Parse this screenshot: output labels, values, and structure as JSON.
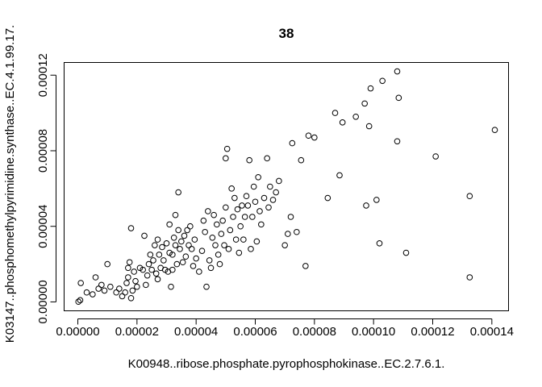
{
  "chart_data": {
    "type": "scatter",
    "title": "38",
    "xlabel": "K00948..ribose.phosphate.pyrophosphokinase..EC.2.7.6.1.",
    "ylabel": "K03147..phosphomethylpyrimidine.synthase..EC.4.1.99.17.",
    "xlim": [
      -4.5e-06,
      0.0001455
    ],
    "ylim": [
      -4.5e-06,
      0.0001265
    ],
    "xticks": [
      0,
      2e-05,
      4e-05,
      6e-05,
      8e-05,
      0.0001,
      0.00012,
      0.00014
    ],
    "xtick_labels": [
      "0.00000",
      "0.00002",
      "0.00004",
      "0.00006",
      "0.00008",
      "0.00010",
      "0.00012",
      "0.00014"
    ],
    "yticks": [
      0,
      4e-05,
      8e-05,
      0.00012
    ],
    "ytick_labels": [
      "0.00000",
      "0.00004",
      "0.00008",
      "0.00012"
    ],
    "grid": false,
    "marker": "open-circle",
    "points": [
      [
        2e-07,
        1e-07
      ],
      [
        8e-07,
        9e-07
      ],
      [
        1e-06,
        1e-05
      ],
      [
        3e-06,
        5e-06
      ],
      [
        5e-06,
        4e-06
      ],
      [
        6e-06,
        1.3e-05
      ],
      [
        7e-06,
        7e-06
      ],
      [
        8e-06,
        9e-06
      ],
      [
        9e-06,
        6e-06
      ],
      [
        1e-05,
        2e-05
      ],
      [
        1.1e-05,
        8e-06
      ],
      [
        1.3e-05,
        5e-06
      ],
      [
        1.4e-05,
        7e-06
      ],
      [
        1.5e-05,
        3e-06
      ],
      [
        1.6e-05,
        5e-06
      ],
      [
        1.65e-05,
        1e-05
      ],
      [
        1.7e-05,
        1.3e-05
      ],
      [
        1.7e-05,
        1.8e-05
      ],
      [
        1.75e-05,
        2.1e-05
      ],
      [
        1.8e-05,
        3.9e-05
      ],
      [
        1.8e-05,
        2e-06
      ],
      [
        1.85e-05,
        6e-06
      ],
      [
        1.9e-05,
        1.6e-05
      ],
      [
        1.95e-05,
        1.1e-05
      ],
      [
        2e-05,
        8e-06
      ],
      [
        2.1e-05,
        1.8e-05
      ],
      [
        2.2e-05,
        1.7e-05
      ],
      [
        2.25e-05,
        3.5e-05
      ],
      [
        2.3e-05,
        9e-06
      ],
      [
        2.35e-05,
        1.4e-05
      ],
      [
        2.4e-05,
        2e-05
      ],
      [
        2.45e-05,
        2.5e-05
      ],
      [
        2.5e-05,
        1.7e-05
      ],
      [
        2.55e-05,
        2.2e-05
      ],
      [
        2.6e-05,
        3e-05
      ],
      [
        2.65e-05,
        1.5e-05
      ],
      [
        2.7e-05,
        1.2e-05
      ],
      [
        2.7e-05,
        3.3e-05
      ],
      [
        2.75e-05,
        2.5e-05
      ],
      [
        2.8e-05,
        1.8e-05
      ],
      [
        2.85e-05,
        2.9e-05
      ],
      [
        2.9e-05,
        2.2e-05
      ],
      [
        2.95e-05,
        1.7e-05
      ],
      [
        3e-05,
        3.1e-05
      ],
      [
        3.05e-05,
        1.6e-05
      ],
      [
        3.1e-05,
        2.6e-05
      ],
      [
        3.1e-05,
        4.1e-05
      ],
      [
        3.15e-05,
        8e-06
      ],
      [
        3.2e-05,
        2.5e-05
      ],
      [
        3.2e-05,
        1.7e-05
      ],
      [
        3.25e-05,
        3.4e-05
      ],
      [
        3.3e-05,
        3e-05
      ],
      [
        3.3e-05,
        4.6e-05
      ],
      [
        3.35e-05,
        2e-05
      ],
      [
        3.4e-05,
        3.8e-05
      ],
      [
        3.4e-05,
        5.8e-05
      ],
      [
        3.45e-05,
        2.8e-05
      ],
      [
        3.5e-05,
        3.2e-05
      ],
      [
        3.55e-05,
        2.1e-05
      ],
      [
        3.6e-05,
        3.5e-05
      ],
      [
        3.65e-05,
        2.4e-05
      ],
      [
        3.7e-05,
        3.8e-05
      ],
      [
        3.75e-05,
        3e-05
      ],
      [
        3.8e-05,
        4e-05
      ],
      [
        3.85e-05,
        2.8e-05
      ],
      [
        3.9e-05,
        1.9e-05
      ],
      [
        3.95e-05,
        3.3e-05
      ],
      [
        4e-05,
        2.3e-05
      ],
      [
        4.1e-05,
        1.6e-05
      ],
      [
        4.2e-05,
        2.7e-05
      ],
      [
        4.25e-05,
        4.3e-05
      ],
      [
        4.3e-05,
        3.7e-05
      ],
      [
        4.35e-05,
        8e-06
      ],
      [
        4.4e-05,
        4.8e-05
      ],
      [
        4.45e-05,
        2.2e-05
      ],
      [
        4.5e-05,
        1.8e-05
      ],
      [
        4.55e-05,
        3.4e-05
      ],
      [
        4.6e-05,
        4.6e-05
      ],
      [
        4.65e-05,
        3e-05
      ],
      [
        4.7e-05,
        4.1e-05
      ],
      [
        4.75e-05,
        2.5e-05
      ],
      [
        4.8e-05,
        2e-05
      ],
      [
        4.85e-05,
        3.6e-05
      ],
      [
        4.9e-05,
        4.3e-05
      ],
      [
        4.95e-05,
        3e-05
      ],
      [
        5e-05,
        5e-05
      ],
      [
        5e-05,
        7.6e-05
      ],
      [
        5.05e-05,
        8.1e-05
      ],
      [
        5.1e-05,
        2.8e-05
      ],
      [
        5.15e-05,
        3.8e-05
      ],
      [
        5.2e-05,
        6e-05
      ],
      [
        5.25e-05,
        4.5e-05
      ],
      [
        5.3e-05,
        5.5e-05
      ],
      [
        5.35e-05,
        3.3e-05
      ],
      [
        5.4e-05,
        4.9e-05
      ],
      [
        5.45e-05,
        2.6e-05
      ],
      [
        5.5e-05,
        4e-05
      ],
      [
        5.55e-05,
        5.1e-05
      ],
      [
        5.6e-05,
        3.3e-05
      ],
      [
        5.65e-05,
        4.5e-05
      ],
      [
        5.7e-05,
        5.6e-05
      ],
      [
        5.75e-05,
        5.1e-05
      ],
      [
        5.8e-05,
        7.5e-05
      ],
      [
        5.85e-05,
        2.8e-05
      ],
      [
        5.9e-05,
        4.5e-05
      ],
      [
        5.95e-05,
        6.1e-05
      ],
      [
        6e-05,
        5.3e-05
      ],
      [
        6.05e-05,
        3.2e-05
      ],
      [
        6.1e-05,
        6.6e-05
      ],
      [
        6.15e-05,
        4.8e-05
      ],
      [
        6.2e-05,
        4.1e-05
      ],
      [
        6.3e-05,
        5.5e-05
      ],
      [
        6.4e-05,
        7.6e-05
      ],
      [
        6.45e-05,
        5e-05
      ],
      [
        6.5e-05,
        6.1e-05
      ],
      [
        6.6e-05,
        5.4e-05
      ],
      [
        6.7e-05,
        5.8e-05
      ],
      [
        6.8e-05,
        6.4e-05
      ],
      [
        7e-05,
        3e-05
      ],
      [
        7.1e-05,
        3.6e-05
      ],
      [
        7.2e-05,
        4.5e-05
      ],
      [
        7.25e-05,
        8.4e-05
      ],
      [
        7.4e-05,
        3.7e-05
      ],
      [
        7.55e-05,
        7.5e-05
      ],
      [
        7.7e-05,
        1.9e-05
      ],
      [
        7.8e-05,
        8.8e-05
      ],
      [
        8e-05,
        8.7e-05
      ],
      [
        8.45e-05,
        5.5e-05
      ],
      [
        8.7e-05,
        0.0001
      ],
      [
        8.85e-05,
        6.7e-05
      ],
      [
        8.95e-05,
        9.5e-05
      ],
      [
        9.4e-05,
        9.8e-05
      ],
      [
        9.7e-05,
        0.000105
      ],
      [
        9.75e-05,
        5.1e-05
      ],
      [
        9.85e-05,
        9.3e-05
      ],
      [
        9.9e-05,
        0.000113
      ],
      [
        0.000101,
        5.4e-05
      ],
      [
        0.000102,
        3.1e-05
      ],
      [
        0.000103,
        0.000117
      ],
      [
        0.000108,
        0.000122
      ],
      [
        0.000108,
        8.5e-05
      ],
      [
        0.0001085,
        0.000108
      ],
      [
        0.000111,
        2.6e-05
      ],
      [
        0.000121,
        7.7e-05
      ],
      [
        0.0001325,
        5.6e-05
      ],
      [
        0.0001325,
        1.3e-05
      ],
      [
        0.000141,
        9.1e-05
      ]
    ]
  }
}
